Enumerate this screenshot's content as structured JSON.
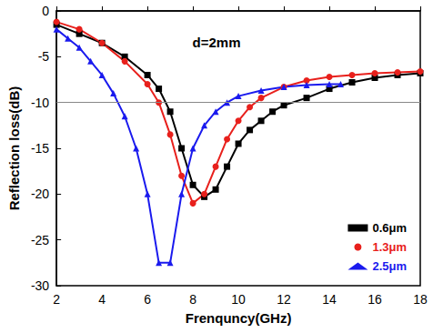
{
  "chart_data": {
    "type": "line",
    "title": "d=2mm",
    "x_label": "Frenquncy(GHz)",
    "y_label": "Reflection loss(dB)",
    "xlim": [
      2,
      18
    ],
    "xticks": [
      2,
      4,
      6,
      8,
      10,
      12,
      14,
      16,
      18
    ],
    "ylim": [
      -30,
      0
    ],
    "yticks": [
      -30,
      -25,
      -20,
      -15,
      -10,
      -5,
      0
    ],
    "reference_line": -10,
    "legend": "lower right",
    "series": [
      {
        "name": "0.6μm",
        "color": "#000000",
        "marker": "square",
        "x": [
          2,
          3,
          4,
          5,
          6,
          6.5,
          7,
          7.5,
          8,
          8.5,
          9,
          9.5,
          10,
          10.5,
          11,
          11.5,
          12,
          13,
          14,
          15,
          16,
          17,
          18
        ],
        "values": [
          -1.5,
          -2.5,
          -3.5,
          -5,
          -7,
          -8.5,
          -11,
          -15,
          -19,
          -20.3,
          -19.5,
          -17,
          -14.5,
          -13,
          -12,
          -11,
          -10.3,
          -9.5,
          -8.5,
          -7.8,
          -7.3,
          -7,
          -6.8
        ]
      },
      {
        "name": "1.3μm",
        "color": "#e8201c",
        "marker": "circle",
        "x": [
          2,
          3,
          4,
          5,
          6,
          6.5,
          7,
          7.5,
          8,
          8.5,
          9,
          9.5,
          10,
          10.5,
          11,
          12,
          13,
          14,
          15,
          16,
          17,
          18
        ],
        "values": [
          -1.2,
          -2,
          -3.5,
          -5.5,
          -8,
          -10,
          -13.5,
          -18,
          -21,
          -20,
          -17,
          -14,
          -12,
          -10.5,
          -9.5,
          -8.3,
          -7.6,
          -7.2,
          -7,
          -6.8,
          -6.7,
          -6.6
        ]
      },
      {
        "name": "2.5μm",
        "color": "#1a1aee",
        "marker": "triangle",
        "x": [
          2,
          2.5,
          3,
          3.5,
          4,
          4.5,
          5,
          5.5,
          6,
          6.5,
          7,
          7.5,
          8,
          8.5,
          9,
          9.5,
          10,
          11,
          12,
          13,
          14,
          14.5
        ],
        "values": [
          -2,
          -3,
          -4,
          -5.5,
          -7,
          -9,
          -11.5,
          -15,
          -20,
          -27.5,
          -27.5,
          -20,
          -15,
          -12.5,
          -11,
          -10,
          -9.3,
          -8.7,
          -8.3,
          -8.1,
          -8,
          -8
        ]
      }
    ]
  }
}
